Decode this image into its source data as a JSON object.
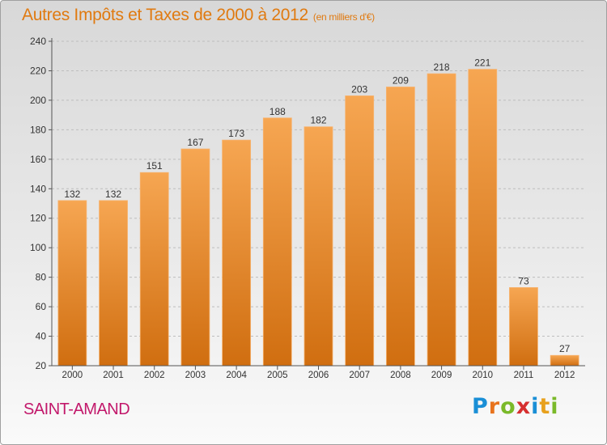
{
  "header": {
    "title": "Autres Impôts et Taxes de 2000 à 2012",
    "unit": "(en milliers d'€)"
  },
  "footer": {
    "commune": "SAINT-AMAND",
    "logo_text": "Proxiti",
    "logo_letters": [
      {
        "char": "P",
        "color": "#1a8fd6"
      },
      {
        "char": "r",
        "color": "#e8731d"
      },
      {
        "char": "o",
        "color": "#7ab929"
      },
      {
        "char": "x",
        "color": "#d62f2f"
      },
      {
        "char": "i",
        "color": "#1a8fd6"
      },
      {
        "char": "t",
        "color": "#e8a11d"
      },
      {
        "char": "i",
        "color": "#7ab929"
      }
    ]
  },
  "colors": {
    "bar_light": "#f6a652",
    "bar_dark": "#d06e10",
    "title": "#e07a10",
    "commune": "#c2186b",
    "axis": "#555555",
    "grid": "#bdbdbd"
  },
  "chart_data": {
    "type": "bar",
    "title": "Autres Impôts et Taxes de 2000 à 2012",
    "subtitle": "(en milliers d'€)",
    "categories": [
      "2000",
      "2001",
      "2002",
      "2003",
      "2004",
      "2005",
      "2006",
      "2007",
      "2008",
      "2009",
      "2010",
      "2011",
      "2012"
    ],
    "values": [
      132,
      132,
      151,
      167,
      173,
      188,
      182,
      203,
      209,
      218,
      221,
      73,
      27
    ],
    "ylim": [
      20,
      240
    ],
    "yticks": [
      20,
      40,
      60,
      80,
      100,
      120,
      140,
      160,
      180,
      200,
      220,
      240
    ],
    "grid": true,
    "data_labels": true,
    "legend": "none"
  }
}
